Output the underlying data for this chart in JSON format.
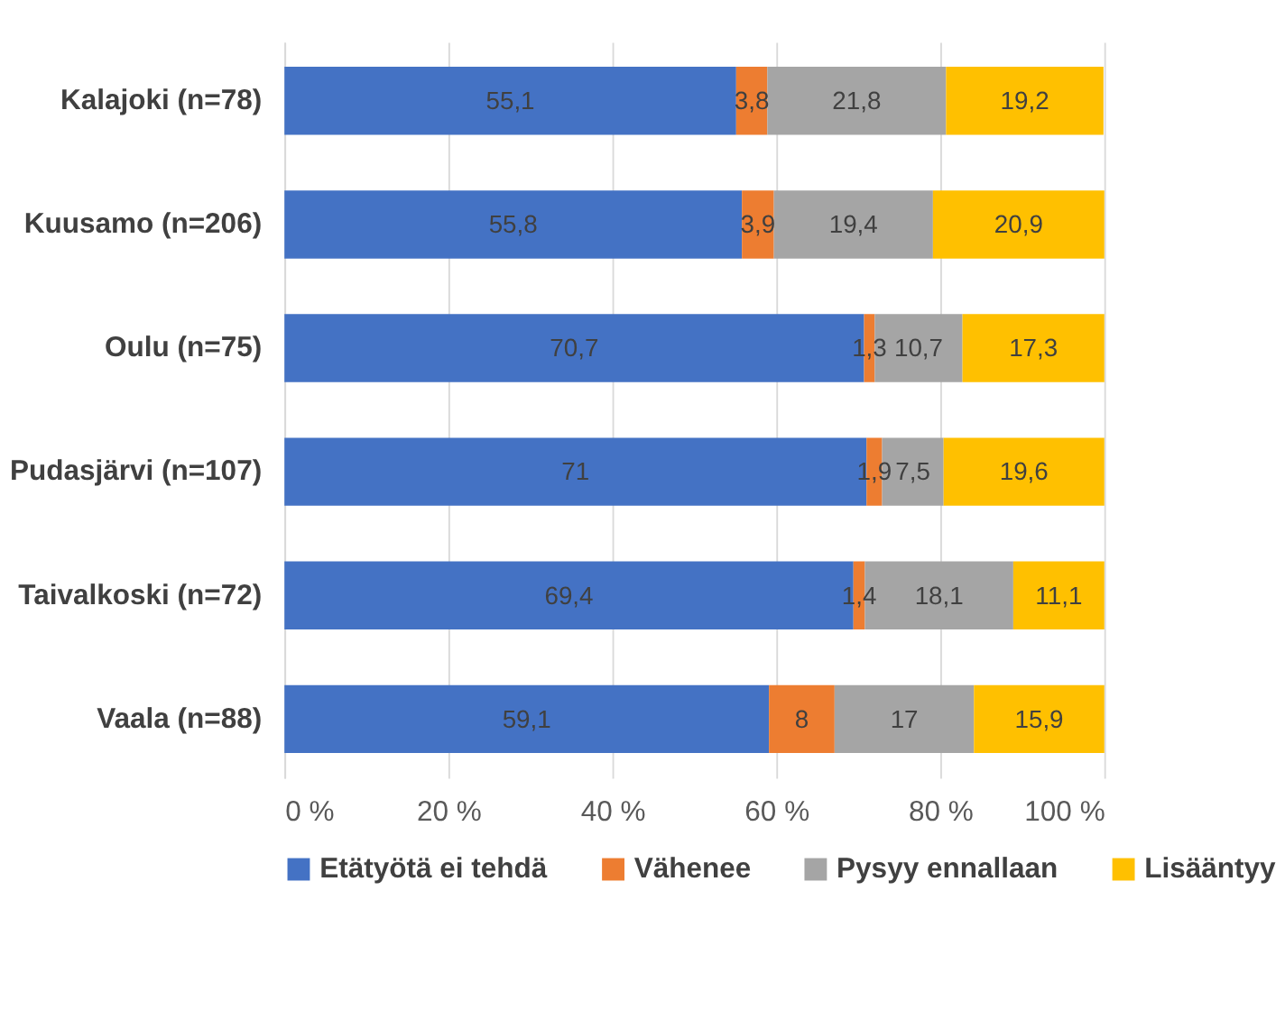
{
  "chart_data": {
    "type": "bar",
    "orientation": "horizontal",
    "stacked": true,
    "categories": [
      "Kalajoki (n=78)",
      "Kuusamo (n=206)",
      "Oulu (n=75)",
      "Pudasjärvi (n=107)",
      "Taivalkoski (n=72)",
      "Vaala (n=88)"
    ],
    "series": [
      {
        "name": "Etätyötä ei tehdä",
        "color": "#4472c4",
        "values": [
          55.1,
          55.8,
          70.7,
          71,
          69.4,
          59.1
        ],
        "value_labels": [
          "55,1",
          "55,8",
          "70,7",
          "71",
          "69,4",
          "59,1"
        ]
      },
      {
        "name": "Vähenee",
        "color": "#ed7d31",
        "values": [
          3.8,
          3.9,
          1.3,
          1.9,
          1.4,
          8
        ],
        "value_labels": [
          "3,8",
          "3,9",
          "1,3",
          "1,9",
          "1,4",
          "8"
        ]
      },
      {
        "name": "Pysyy ennallaan",
        "color": "#a5a5a5",
        "values": [
          21.8,
          19.4,
          10.7,
          7.5,
          18.1,
          17
        ],
        "value_labels": [
          "21,8",
          "19,4",
          "10,7",
          "7,5",
          "18,1",
          "17"
        ]
      },
      {
        "name": "Lisääntyy",
        "color": "#ffc000",
        "values": [
          19.2,
          20.9,
          17.3,
          19.6,
          11.1,
          15.9
        ],
        "value_labels": [
          "19,2",
          "20,9",
          "17,3",
          "19,6",
          "11,1",
          "15,9"
        ]
      }
    ],
    "xlim": [
      0,
      100
    ],
    "xticks": [
      {
        "value": 0,
        "label": "0 %"
      },
      {
        "value": 20,
        "label": "20 %"
      },
      {
        "value": 40,
        "label": "40 %"
      },
      {
        "value": 60,
        "label": "60 %"
      },
      {
        "value": 80,
        "label": "80 %"
      },
      {
        "value": 100,
        "label": "100 %"
      }
    ],
    "grid": "x",
    "legend": "bottom"
  }
}
